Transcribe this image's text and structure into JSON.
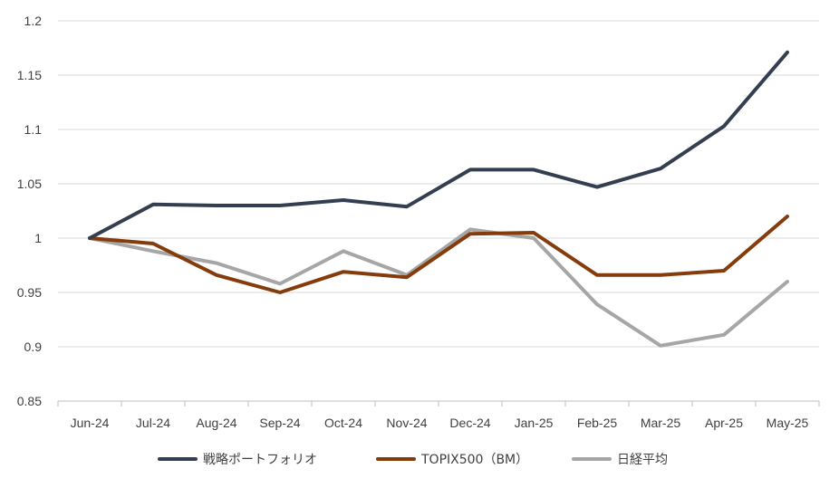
{
  "chart_data": {
    "type": "line",
    "title": "",
    "xlabel": "",
    "ylabel": "",
    "categories": [
      "Jun-24",
      "Jul-24",
      "Aug-24",
      "Sep-24",
      "Oct-24",
      "Nov-24",
      "Dec-24",
      "Jan-25",
      "Feb-25",
      "Mar-25",
      "Apr-25",
      "May-25"
    ],
    "ylim": [
      0.85,
      1.2
    ],
    "yticks": [
      "0.85",
      "0.9",
      "0.95",
      "1",
      "1.05",
      "1.1",
      "1.15",
      "1.2"
    ],
    "grid": true,
    "legend_position": "bottom",
    "series": [
      {
        "name": "戦略ポートフォリオ",
        "color": "#333f50",
        "values": [
          1.0,
          1.031,
          1.03,
          1.03,
          1.035,
          1.029,
          1.063,
          1.063,
          1.047,
          1.064,
          1.103,
          1.171
        ]
      },
      {
        "name": "TOPIX500（BM）",
        "color": "#843c0c",
        "values": [
          1.0,
          0.995,
          0.966,
          0.95,
          0.969,
          0.964,
          1.004,
          1.005,
          0.966,
          0.966,
          0.97,
          1.02
        ]
      },
      {
        "name": "日経平均",
        "color": "#a6a6a6",
        "values": [
          1.0,
          0.988,
          0.977,
          0.958,
          0.988,
          0.966,
          1.008,
          1.0,
          0.939,
          0.901,
          0.911,
          0.96
        ]
      }
    ]
  }
}
